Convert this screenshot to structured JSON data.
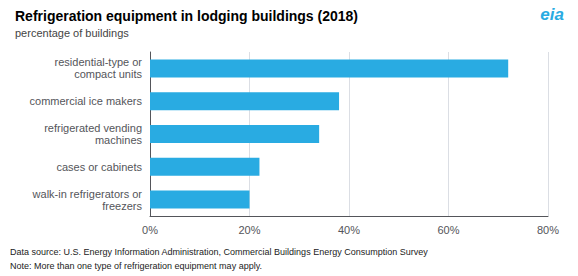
{
  "chart_data": {
    "type": "bar",
    "orientation": "horizontal",
    "title": "Refrigeration equipment in lodging buildings (2018)",
    "subtitle": "percentage of buildings",
    "categories": [
      "walk-in refrigerators or\nfreezers",
      "cases or cabinets",
      "refrigerated vending\nmachines",
      "commercial ice makers",
      "residential-type or\ncompact units"
    ],
    "values": [
      20,
      22,
      34,
      38,
      72
    ],
    "color": "#29ABE2",
    "xlim": [
      0,
      80
    ],
    "xticks": [
      {
        "value": 0,
        "label": "0%"
      },
      {
        "value": 20,
        "label": "20%"
      },
      {
        "value": 40,
        "label": "40%"
      },
      {
        "value": 60,
        "label": "60%"
      },
      {
        "value": 80,
        "label": "80%"
      }
    ],
    "grid": true,
    "annotations": [
      "eia",
      "Data source: U.S. Energy Information Administration, Commercial Buildings Energy Consumption Survey",
      "Note: More than one type of refrigeration equipment may apply."
    ]
  }
}
